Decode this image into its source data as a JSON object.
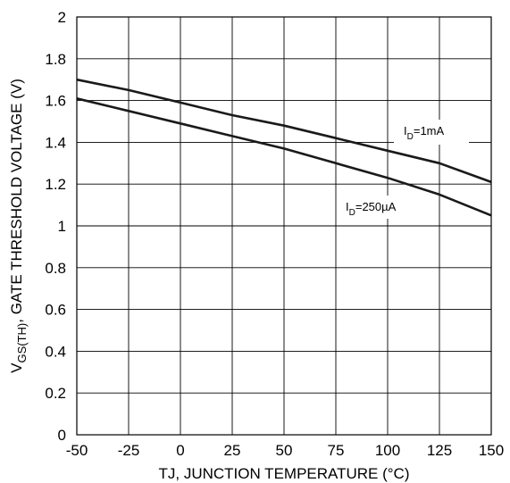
{
  "chart_data": {
    "type": "line",
    "xlabel": "TJ, JUNCTION TEMPERATURE (°C)",
    "ylabel": {
      "main": "V",
      "sub": "GS(TH)",
      "rest": ", GATE THRESHOLD VOLTAGE (V)"
    },
    "xlim": [
      -50,
      150
    ],
    "ylim": [
      0,
      2
    ],
    "x_ticks": [
      "-50",
      "-25",
      "0",
      "25",
      "50",
      "75",
      "100",
      "125",
      "150"
    ],
    "y_ticks": [
      "0",
      "0.2",
      "0.4",
      "0.6",
      "0.8",
      "1",
      "1.2",
      "1.4",
      "1.6",
      "1.8",
      "2"
    ],
    "grid": true,
    "line_color": "#1a1a1a",
    "series": [
      {
        "name": "I_D=1mA",
        "label": {
          "main": "I",
          "sub": "D",
          "rest": "=1mA"
        },
        "x": [
          -50,
          -25,
          0,
          25,
          50,
          75,
          100,
          125,
          150
        ],
        "y": [
          1.7,
          1.65,
          1.59,
          1.53,
          1.48,
          1.42,
          1.36,
          1.3,
          1.21
        ]
      },
      {
        "name": "I_D=250µA",
        "label": {
          "main": "I",
          "sub": "D",
          "rest": "=250µA"
        },
        "x": [
          -50,
          -25,
          0,
          25,
          50,
          75,
          100,
          125,
          150
        ],
        "y": [
          1.61,
          1.55,
          1.49,
          1.43,
          1.37,
          1.3,
          1.23,
          1.15,
          1.05
        ]
      }
    ]
  }
}
